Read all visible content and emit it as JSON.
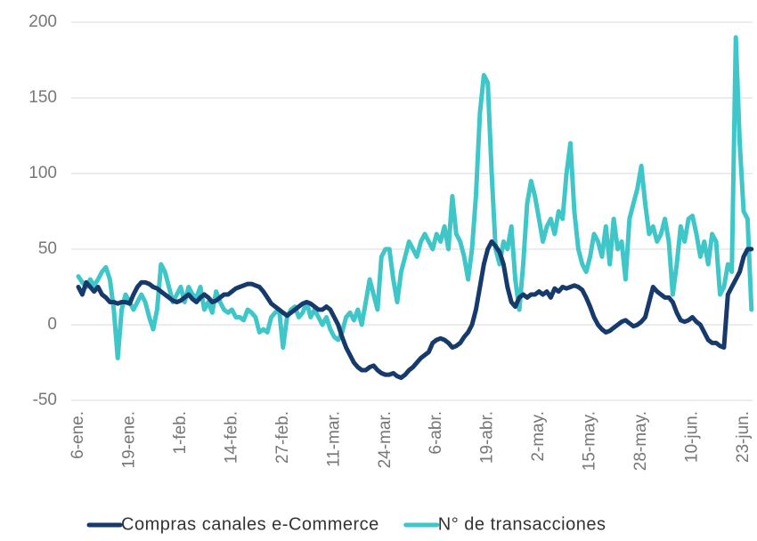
{
  "chart_data": {
    "type": "line",
    "categories": [
      "6-ene.",
      null,
      null,
      null,
      null,
      null,
      null,
      null,
      null,
      null,
      null,
      null,
      null,
      "19-ene.",
      null,
      null,
      null,
      null,
      null,
      null,
      null,
      null,
      null,
      null,
      null,
      null,
      "1-feb.",
      null,
      null,
      null,
      null,
      null,
      null,
      null,
      null,
      null,
      null,
      null,
      null,
      "14-feb.",
      null,
      null,
      null,
      null,
      null,
      null,
      null,
      null,
      null,
      null,
      null,
      null,
      "27-feb.",
      null,
      null,
      null,
      null,
      null,
      null,
      null,
      null,
      null,
      null,
      null,
      null,
      "11-mar.",
      null,
      null,
      null,
      null,
      null,
      null,
      null,
      null,
      null,
      null,
      null,
      null,
      "24-mar.",
      null,
      null,
      null,
      null,
      null,
      null,
      null,
      null,
      null,
      null,
      null,
      null,
      "6-abr.",
      null,
      null,
      null,
      null,
      null,
      null,
      null,
      null,
      null,
      null,
      null,
      null,
      "19-abr.",
      null,
      null,
      null,
      null,
      null,
      null,
      null,
      null,
      null,
      null,
      null,
      null,
      "2-may.",
      null,
      null,
      null,
      null,
      null,
      null,
      null,
      null,
      null,
      null,
      null,
      null,
      "15-may.",
      null,
      null,
      null,
      null,
      null,
      null,
      null,
      null,
      null,
      null,
      null,
      null,
      "28-may.",
      null,
      null,
      null,
      null,
      null,
      null,
      null,
      null,
      null,
      null,
      null,
      null,
      "10-jun.",
      null,
      null,
      null,
      null,
      null,
      null,
      null,
      null,
      null,
      null,
      null,
      null,
      "23-jun.",
      null,
      null
    ],
    "series": [
      {
        "name": "Compras canales e-Commerce",
        "color": "#163a6b",
        "values": [
          25,
          20,
          28,
          25,
          22,
          25,
          20,
          18,
          15,
          15,
          14,
          15,
          15,
          14,
          20,
          25,
          28,
          28,
          27,
          25,
          24,
          22,
          20,
          18,
          16,
          15,
          16,
          18,
          20,
          17,
          15,
          18,
          20,
          18,
          15,
          16,
          18,
          20,
          20,
          22,
          24,
          25,
          26,
          27,
          27,
          26,
          25,
          22,
          18,
          14,
          12,
          10,
          8,
          6,
          8,
          10,
          12,
          14,
          15,
          14,
          12,
          10,
          10,
          12,
          10,
          5,
          0,
          -8,
          -15,
          -20,
          -25,
          -28,
          -30,
          -30,
          -28,
          -27,
          -30,
          -32,
          -33,
          -33,
          -32,
          -34,
          -35,
          -33,
          -30,
          -28,
          -25,
          -22,
          -20,
          -18,
          -12,
          -10,
          -9,
          -10,
          -12,
          -15,
          -14,
          -12,
          -8,
          -5,
          0,
          10,
          25,
          40,
          50,
          55,
          52,
          48,
          40,
          25,
          15,
          12,
          18,
          20,
          18,
          20,
          20,
          22,
          20,
          22,
          18,
          24,
          22,
          25,
          24,
          25,
          26,
          25,
          23,
          18,
          12,
          5,
          0,
          -3,
          -5,
          -4,
          -2,
          0,
          2,
          3,
          1,
          -1,
          0,
          2,
          5,
          15,
          25,
          22,
          20,
          18,
          18,
          15,
          8,
          3,
          2,
          3,
          5,
          2,
          0,
          -5,
          -10,
          -12,
          -12,
          -14,
          -15,
          20,
          25,
          30,
          35,
          45,
          50,
          50
        ]
      },
      {
        "name": "N° de transacciones",
        "color": "#3fc6c8",
        "values": [
          32,
          28,
          25,
          30,
          26,
          30,
          35,
          38,
          30,
          10,
          -22,
          10,
          20,
          15,
          10,
          15,
          20,
          15,
          5,
          -3,
          10,
          40,
          35,
          25,
          15,
          20,
          25,
          15,
          25,
          20,
          18,
          25,
          10,
          15,
          8,
          22,
          15,
          10,
          8,
          10,
          5,
          5,
          3,
          10,
          8,
          5,
          -5,
          -3,
          -5,
          5,
          8,
          10,
          -15,
          5,
          10,
          12,
          5,
          8,
          15,
          5,
          10,
          5,
          0,
          5,
          -3,
          -8,
          -10,
          -5,
          5,
          8,
          3,
          10,
          0,
          15,
          30,
          20,
          10,
          45,
          50,
          50,
          30,
          15,
          35,
          45,
          55,
          50,
          45,
          55,
          60,
          55,
          50,
          60,
          55,
          65,
          50,
          85,
          60,
          55,
          45,
          30,
          50,
          85,
          140,
          165,
          160,
          100,
          50,
          40,
          55,
          50,
          65,
          30,
          10,
          40,
          80,
          95,
          85,
          70,
          55,
          65,
          70,
          60,
          75,
          70,
          100,
          120,
          75,
          50,
          40,
          35,
          45,
          60,
          55,
          45,
          65,
          40,
          70,
          50,
          55,
          30,
          70,
          80,
          90,
          105,
          80,
          60,
          65,
          55,
          60,
          70,
          55,
          20,
          40,
          65,
          55,
          70,
          72,
          60,
          45,
          55,
          40,
          60,
          55,
          20,
          25,
          40,
          35,
          190,
          120,
          75,
          70,
          10
        ]
      }
    ],
    "ylim": [
      -50,
      200
    ],
    "yticks": [
      -50,
      0,
      50,
      100,
      150,
      200
    ],
    "grid": true,
    "legend": "bottom"
  }
}
